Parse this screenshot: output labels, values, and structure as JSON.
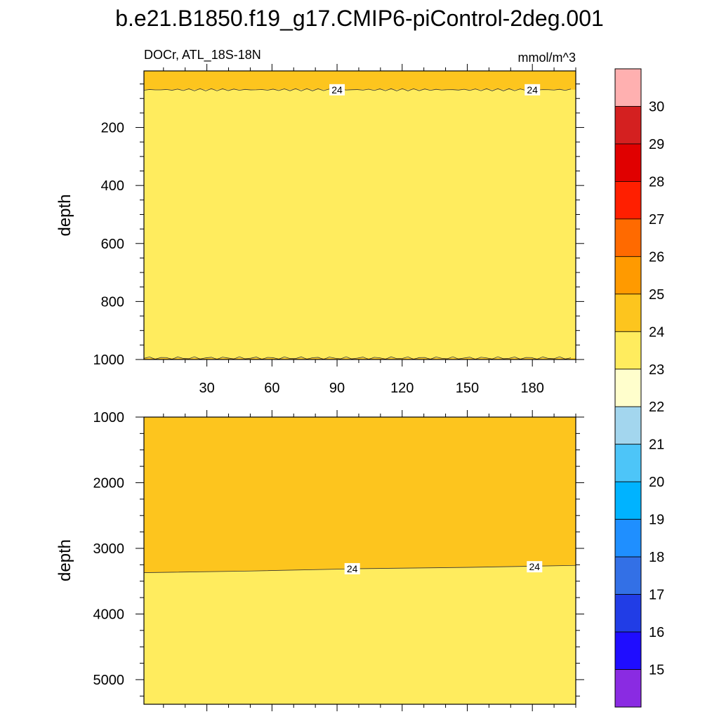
{
  "title": "b.e21.B1850.f19_g17.CMIP6-piControl-2deg.001",
  "chart_data": [
    {
      "type": "heatmap",
      "panel": "top",
      "left_label": "DOCr, ATL_18S-18N",
      "right_label": "mmol/m^3",
      "ylabel": "depth",
      "xlim": [
        1,
        200
      ],
      "ylim": [
        1000,
        5
      ],
      "xticks": [
        "30",
        "60",
        "90",
        "120",
        "150",
        "180"
      ],
      "yticks": [
        "200",
        "400",
        "600",
        "800",
        "1000"
      ],
      "bands": [
        {
          "from_depth": 5,
          "to_depth": 70,
          "level": "24-25"
        },
        {
          "from_depth": 70,
          "to_depth": 995,
          "level": "23-24"
        },
        {
          "from_depth": 995,
          "to_depth": 1000,
          "level": "24-25"
        }
      ],
      "contour_labels": [
        {
          "x": 90,
          "depth": 70,
          "text": "24"
        },
        {
          "x": 180,
          "depth": 70,
          "text": "24"
        }
      ]
    },
    {
      "type": "heatmap",
      "panel": "bottom",
      "ylabel": "depth",
      "xlim": [
        1,
        200
      ],
      "ylim": [
        5375,
        1000
      ],
      "xticks": [],
      "yticks": [
        "1000",
        "2000",
        "3000",
        "4000",
        "5000"
      ],
      "contour_24": [
        {
          "x": 1,
          "depth": 3370
        },
        {
          "x": 50,
          "depth": 3345
        },
        {
          "x": 100,
          "depth": 3310
        },
        {
          "x": 150,
          "depth": 3290
        },
        {
          "x": 200,
          "depth": 3260
        }
      ],
      "bands": [
        {
          "above_contour": true,
          "level": "24-25"
        },
        {
          "above_contour": false,
          "level": "23-24"
        }
      ],
      "contour_labels": [
        {
          "x": 97,
          "depth": 3310,
          "text": "24"
        },
        {
          "x": 181,
          "depth": 3280,
          "text": "24"
        }
      ]
    }
  ],
  "colorbar": {
    "labels": [
      "15",
      "16",
      "17",
      "18",
      "19",
      "20",
      "21",
      "22",
      "23",
      "24",
      "25",
      "26",
      "27",
      "28",
      "29",
      "30"
    ],
    "colors": [
      "#ffb0b0",
      "#d42020",
      "#e00000",
      "#ff1f00",
      "#ff6a00",
      "#ff9a00",
      "#fdc51e",
      "#ffec5e",
      "#fffecc",
      "#a3d6ee",
      "#4dc5f8",
      "#00b3ff",
      "#1f8fff",
      "#3370e6",
      "#213de6",
      "#1f0dff",
      "#8a2be2"
    ]
  },
  "level_colors": {
    "24-25": "#fdc51e",
    "23-24": "#ffec5e"
  }
}
